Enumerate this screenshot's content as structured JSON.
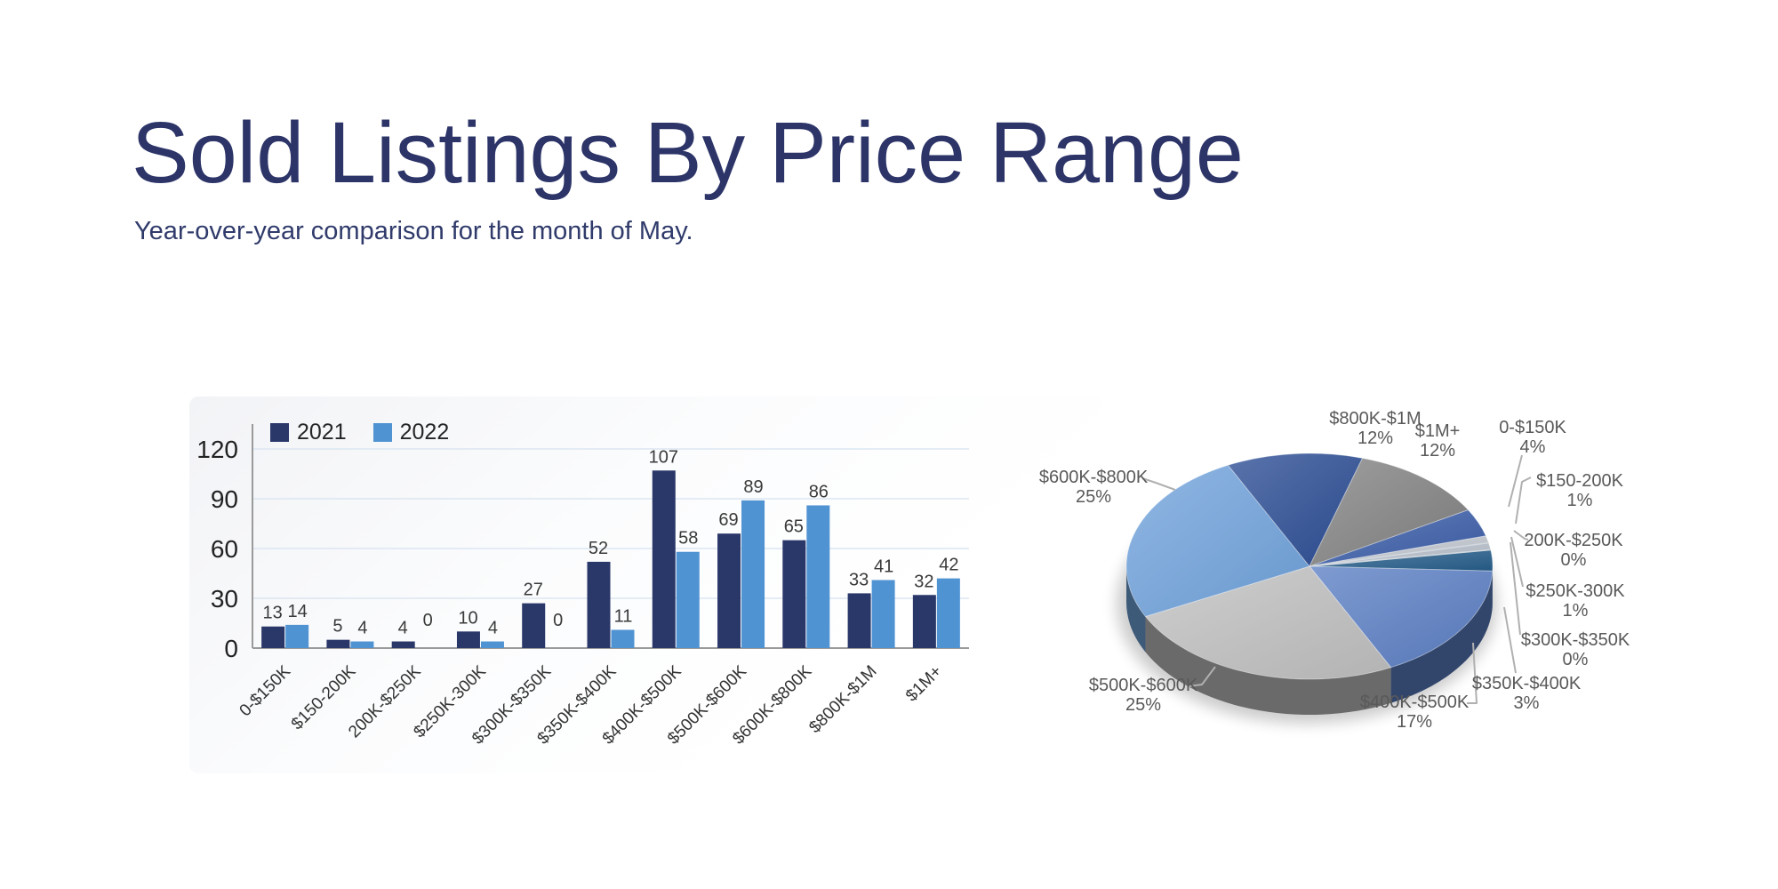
{
  "page": {
    "title": "Sold Listings By Price Range",
    "subtitle": "Year-over-year comparison for the month of May."
  },
  "colors": {
    "title_navy": "#2c3468",
    "bar_2021": "#2a3769",
    "bar_2022": "#5093d3",
    "gridline": "#dce6f2",
    "axis_line": "#9a9a9a",
    "chart_text": "#333333",
    "pie_label_text": "#595959",
    "leader_line": "#b0b0b0"
  },
  "chart_data": [
    {
      "type": "bar",
      "title": "",
      "categories": [
        "0-$150K",
        "$150-200K",
        "200K-$250K",
        "$250K-300K",
        "$300K-$350K",
        "$350K-$400K",
        "$400K-$500K",
        "$500K-$600K",
        "$600K-$800K",
        "$800K-$1M",
        "$1M+"
      ],
      "series": [
        {
          "name": "2021",
          "values": [
            13,
            5,
            4,
            10,
            27,
            52,
            107,
            69,
            65,
            33,
            32
          ],
          "color": "#2a3769"
        },
        {
          "name": "2022",
          "values": [
            14,
            4,
            0,
            4,
            0,
            11,
            58,
            89,
            86,
            41,
            42
          ],
          "color": "#5093d3"
        }
      ],
      "xlabel": "",
      "ylabel": "",
      "ylim": [
        0,
        120
      ],
      "yticks": [
        0,
        30,
        60,
        90,
        120
      ],
      "grid": true,
      "legend_position": "top-left",
      "value_labels": true
    },
    {
      "type": "pie",
      "style": "3d",
      "title": "",
      "categories": [
        "0-$150K",
        "$150-200K",
        "200K-$250K",
        "$250K-300K",
        "$300K-$350K",
        "$350K-$400K",
        "$400K-$500K",
        "$500K-$600K",
        "$600K-$800K",
        "$800K-$1M",
        "$1M+"
      ],
      "values": [
        4,
        1,
        0,
        1,
        0,
        3,
        17,
        25,
        25,
        12,
        12
      ],
      "percent_labels": [
        "4%",
        "1%",
        "0%",
        "1%",
        "0%",
        "3%",
        "17%",
        "25%",
        "25%",
        "12%",
        "12%"
      ],
      "colors": [
        "#3b5ea9",
        "#c2c7d0",
        "#9aa3b0",
        "#b7bfca",
        "#8e98a6",
        "#275f8c",
        "#5b7fc4",
        "#c0c0c0",
        "#71a3dc",
        "#2c4d94",
        "#828282"
      ],
      "start_angle_deg": 60,
      "direction": "clockwise",
      "legend_position": "none"
    }
  ]
}
